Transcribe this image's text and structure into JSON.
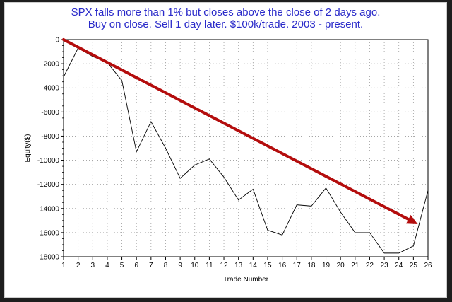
{
  "chart_data": {
    "type": "line",
    "title": "SPX falls more than 1% but closes above the close of 2 days ago.",
    "subtitle": "Buy on close. Sell 1 day later. $100k/trade. 2003 - present.",
    "xlabel": "Trade Number",
    "ylabel": "Equity($)",
    "x": [
      1,
      2,
      3,
      4,
      5,
      6,
      7,
      8,
      9,
      10,
      11,
      12,
      13,
      14,
      15,
      16,
      17,
      18,
      19,
      20,
      21,
      22,
      23,
      24,
      25,
      26
    ],
    "series": [
      {
        "values": [
          -3100,
          -700,
          -1400,
          -1900,
          -3400,
          -9300,
          -6800,
          -9000,
          -11500,
          -10400,
          -9900,
          -11400,
          -13300,
          -12400,
          -15800,
          -16200,
          -13700,
          -13800,
          -12300,
          -14300,
          -16000,
          -16000,
          -17700,
          -17700,
          -17100,
          -12500
        ]
      }
    ],
    "xlim": [
      1,
      26
    ],
    "ylim": [
      -18000,
      0
    ],
    "yticks": [
      0,
      -2000,
      -4000,
      -6000,
      -8000,
      -10000,
      -12000,
      -14000,
      -16000,
      -18000
    ],
    "ytick_labels": [
      "0",
      "-2000",
      "-4000",
      "-6000",
      "-8000",
      "-10000",
      "-12000",
      "-14000",
      "-16000",
      "-18000"
    ],
    "xtick_labels": [
      "1",
      "2",
      "3",
      "4",
      "5",
      "6",
      "7",
      "8",
      "9",
      "10",
      "11",
      "12",
      "13",
      "14",
      "15",
      "16",
      "17",
      "18",
      "19",
      "20",
      "21",
      "22",
      "23",
      "24",
      "25",
      "26"
    ],
    "grid": true,
    "annotation": {
      "type": "arrow",
      "from": [
        1,
        0
      ],
      "to": [
        25.3,
        -15300
      ],
      "color": "#b40d0d"
    },
    "colors": {
      "title": "#2a2ac9",
      "line": "#000000",
      "arrow": "#b40d0d"
    }
  }
}
